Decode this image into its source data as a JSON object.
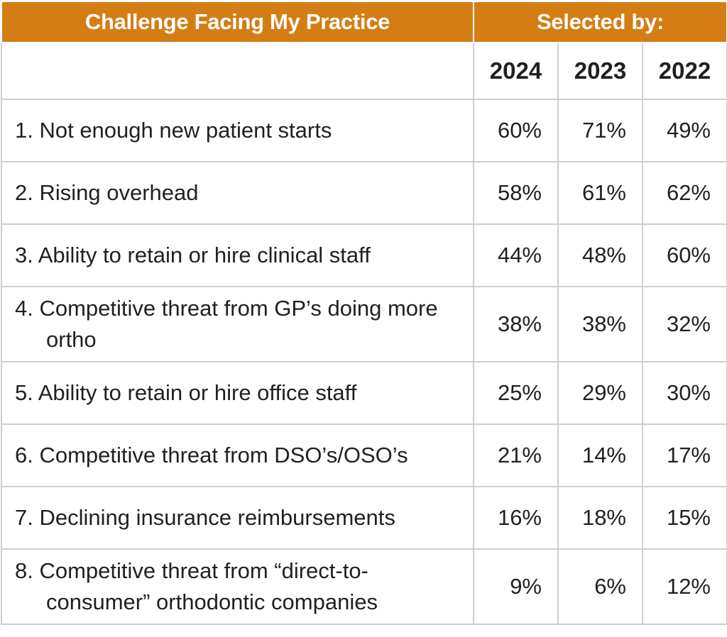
{
  "chart_data": {
    "type": "table",
    "header": {
      "challenge": "Challenge Facing My Practice",
      "selected_by": "Selected by:"
    },
    "years": [
      "2024",
      "2023",
      "2022"
    ],
    "rows": [
      {
        "label": "1. Not enough new patient starts",
        "values": [
          "60%",
          "71%",
          "49%"
        ]
      },
      {
        "label": "2. Rising overhead",
        "values": [
          "58%",
          "61%",
          "62%"
        ]
      },
      {
        "label": "3. Ability to retain or hire clinical staff",
        "values": [
          "44%",
          "48%",
          "60%"
        ]
      },
      {
        "label": "4. Competitive threat from GP’s doing more ortho",
        "values": [
          "38%",
          "38%",
          "32%"
        ]
      },
      {
        "label": "5. Ability to retain or hire office staff",
        "values": [
          "25%",
          "29%",
          "30%"
        ]
      },
      {
        "label": "6. Competitive threat from DSO’s/OSO’s",
        "values": [
          "21%",
          "14%",
          "17%"
        ]
      },
      {
        "label": "7. Declining insurance reimbursements",
        "values": [
          "16%",
          "18%",
          "15%"
        ]
      },
      {
        "label": "8. Competitive threat from “direct-to-consumer” orthodontic companies",
        "values": [
          "9%",
          "6%",
          "12%"
        ]
      }
    ]
  },
  "colors": {
    "header_bg": "#d47d14",
    "header_text": "#ffffff",
    "grid": "#cfcfcf",
    "text": "#231f20"
  }
}
